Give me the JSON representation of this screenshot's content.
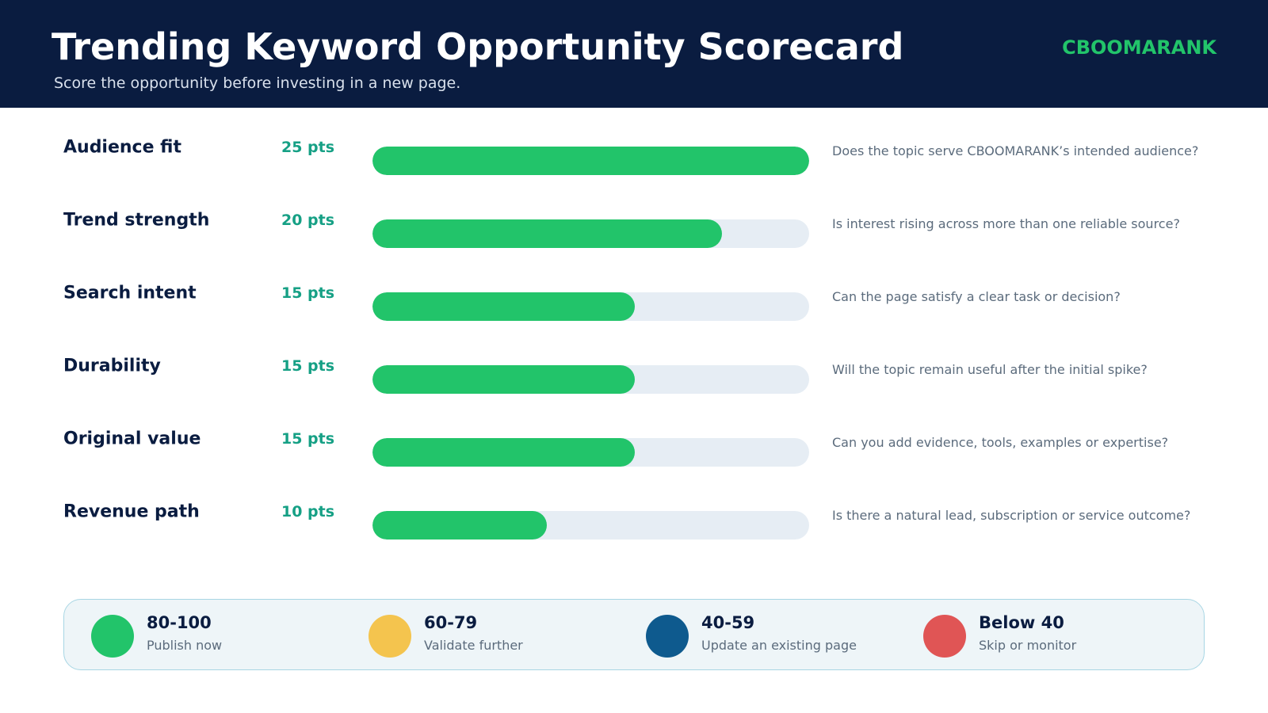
{
  "header": {
    "title": "Trending Keyword Opportunity Scorecard",
    "subtitle": "Score the opportunity before investing in a new page.",
    "brand": "CBOOMARANK"
  },
  "colors": {
    "header_bg": "#0a1c40",
    "accent_green": "#22c46a",
    "points_teal": "#16a085",
    "track": "#e6edf4"
  },
  "chart_data": {
    "type": "bar",
    "orientation": "horizontal",
    "max_points": 25,
    "categories": [
      "Audience fit",
      "Trend strength",
      "Search intent",
      "Durability",
      "Original value",
      "Revenue path"
    ],
    "values": [
      25,
      20,
      15,
      15,
      15,
      10
    ],
    "value_labels": [
      "25 pts",
      "20 pts",
      "15 pts",
      "15 pts",
      "15 pts",
      "10 pts"
    ],
    "descriptions": [
      "Does the topic serve CBOOMARANK’s intended audience?",
      "Is interest rising across more than one reliable source?",
      "Can the page satisfy a clear task or decision?",
      "Will the topic remain useful after the initial spike?",
      "Can you add evidence, tools, examples or expertise?",
      "Is there a natural lead, subscription or service outcome?"
    ]
  },
  "legend": [
    {
      "range": "80-100",
      "action": "Publish now",
      "color": "#22c46a"
    },
    {
      "range": "60-79",
      "action": "Validate further",
      "color": "#f4c44e"
    },
    {
      "range": "40-59",
      "action": "Update an existing page",
      "color": "#0e5a8e"
    },
    {
      "range": "Below 40",
      "action": "Skip or monitor",
      "color": "#e05555"
    }
  ]
}
